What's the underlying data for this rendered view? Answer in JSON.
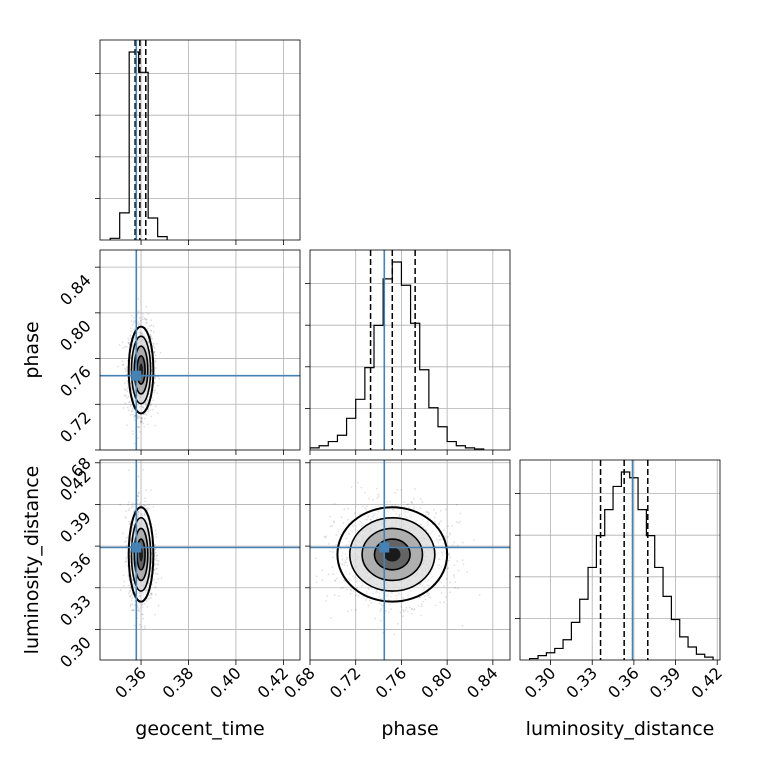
{
  "chart_data": {
    "type": "corner",
    "parameters": [
      "geocent_time",
      "phase",
      "luminosity_distance"
    ],
    "ranges": {
      "geocent_time": [
        0.3427,
        0.427
      ],
      "phase": [
        0.68,
        0.855
      ],
      "luminosity_distance": [
        0.278,
        0.422
      ]
    },
    "ticks": {
      "geocent_time": [
        "0.36",
        "0.38",
        "0.40",
        "0.42"
      ],
      "phase": [
        "0.68",
        "0.72",
        "0.76",
        "0.80",
        "0.84"
      ],
      "luminosity_distance": [
        "0.30",
        "0.33",
        "0.36",
        "0.39",
        "0.42"
      ]
    },
    "truths": {
      "geocent_time": 0.358,
      "phase": 0.745,
      "luminosity_distance": 0.359
    },
    "quantiles": {
      "geocent_time": [
        0.3575,
        0.3595,
        0.362
      ],
      "phase": [
        0.733,
        0.752,
        0.772
      ],
      "luminosity_distance": [
        0.336,
        0.353,
        0.37
      ]
    },
    "histograms": {
      "geocent_time": {
        "edges": [
          0.347,
          0.351,
          0.355,
          0.359,
          0.363,
          0.367,
          0.371
        ],
        "counts": [
          2,
          32,
          222,
          198,
          26,
          4
        ]
      },
      "phase": {
        "edges": [
          0.68,
          0.688,
          0.696,
          0.704,
          0.712,
          0.72,
          0.728,
          0.736,
          0.744,
          0.752,
          0.76,
          0.768,
          0.776,
          0.784,
          0.792,
          0.8,
          0.808,
          0.816,
          0.824,
          0.832
        ],
        "counts": [
          2,
          4,
          8,
          14,
          30,
          48,
          78,
          118,
          162,
          178,
          156,
          120,
          76,
          40,
          22,
          8,
          4,
          2,
          1
        ]
      },
      "luminosity_distance": {
        "edges": [
          0.285,
          0.291,
          0.297,
          0.303,
          0.309,
          0.315,
          0.321,
          0.327,
          0.333,
          0.339,
          0.345,
          0.351,
          0.357,
          0.363,
          0.369,
          0.375,
          0.381,
          0.387,
          0.393,
          0.399,
          0.405,
          0.411,
          0.417
        ],
        "counts": [
          1,
          3,
          5,
          8,
          14,
          26,
          42,
          64,
          86,
          104,
          120,
          130,
          126,
          104,
          86,
          64,
          44,
          28,
          16,
          9,
          4,
          2
        ]
      }
    },
    "scatter_2d": {
      "phase_vs_geocent_time": {
        "center": [
          0.36,
          0.75
        ],
        "spread": [
          0.0026,
          0.019
        ],
        "n": 1500
      },
      "luminosity_distance_vs_geocent_time": {
        "center": [
          0.36,
          0.354
        ],
        "spread": [
          0.0026,
          0.017
        ],
        "n": 1500
      },
      "luminosity_distance_vs_phase": {
        "center": [
          0.752,
          0.354
        ],
        "spread": [
          0.024,
          0.017
        ],
        "n": 1500
      }
    }
  }
}
